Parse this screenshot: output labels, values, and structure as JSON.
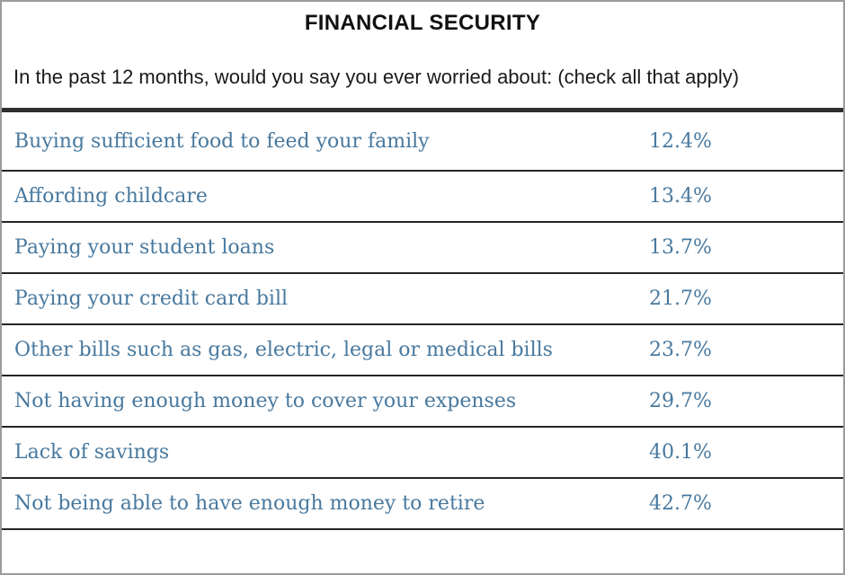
{
  "header": {
    "title": "FINANCIAL SECURITY",
    "question": "In the past 12 months, would you say you ever worried about: (check all that apply)"
  },
  "table": {
    "rows": [
      {
        "label": "Buying sufficient food to feed your family",
        "value": "12.4%"
      },
      {
        "label": "Affording childcare",
        "value": "13.4%"
      },
      {
        "label": "Paying your student loans",
        "value": "13.7%"
      },
      {
        "label": "Paying your credit card bill",
        "value": "21.7%"
      },
      {
        "label": "Other bills such as gas, electric, legal or medical bills",
        "value": "23.7%"
      },
      {
        "label": "Not having enough money to cover your expenses",
        "value": "29.7%"
      },
      {
        "label": "Lack of savings",
        "value": "40.1%"
      },
      {
        "label": "Not being able to have enough money to retire",
        "value": "42.7%"
      }
    ]
  },
  "colors": {
    "row_text": "#48799f",
    "title_text": "#111111",
    "thin_separator": "#252525",
    "thick_divider": "#2e2e2e",
    "outer_border": "#9b9b9b",
    "background": "#ffffff"
  },
  "chart_data": {
    "type": "table",
    "title": "FINANCIAL SECURITY",
    "subtitle": "In the past 12 months, would you say you ever worried about: (check all that apply)",
    "categories": [
      "Buying sufficient food to feed your family",
      "Affording childcare",
      "Paying your student loans",
      "Paying your credit card bill",
      "Other bills such as gas, electric, legal or medical bills",
      "Not having enough money to cover your expenses",
      "Lack of savings",
      "Not being able to have enough money to retire"
    ],
    "values": [
      12.4,
      13.4,
      13.7,
      21.7,
      23.7,
      29.7,
      40.1,
      42.7
    ],
    "unit": "%"
  }
}
